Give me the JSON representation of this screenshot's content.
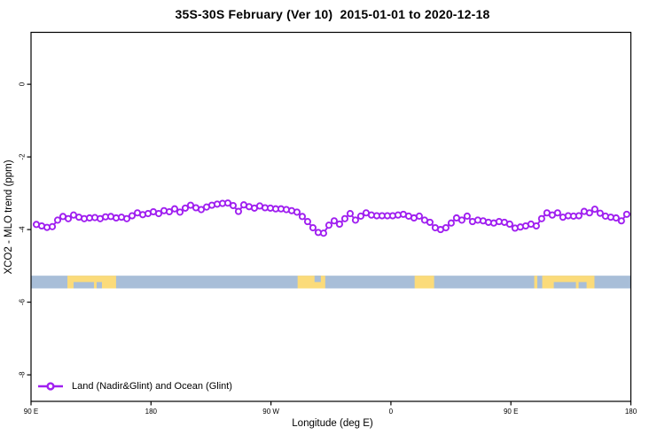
{
  "chart": {
    "title": "35S-30S February (Ver 10)  2015-01-01 to 2020-12-18",
    "xlabel": "Longitude (deg E)",
    "ylabel": "XCO2 - MLO trend (ppm)"
  },
  "legend": {
    "label": "Land (Nadir&Glint) and Ocean (Glint)"
  },
  "colors": {
    "series": "#A020F0",
    "marker_fill": "#FFFFFF",
    "ocean": "#A8BED8",
    "land": "#FBDB7A",
    "axis": "#000000",
    "background": "#FFFFFF"
  },
  "chart_data": {
    "type": "line",
    "title": "35S-30S February (Ver 10)  2015-01-01 to 2020-12-18",
    "xlabel": "Longitude (deg E)",
    "ylabel": "XCO2 - MLO trend (ppm)",
    "xlim": [
      90,
      540
    ],
    "ylim": [
      -8.73,
      1.43
    ],
    "grid": false,
    "legend_position": "bottom-left",
    "x_ticks": [
      {
        "lon": 90,
        "label": "90 E"
      },
      {
        "lon": 180,
        "label": "180"
      },
      {
        "lon": 270,
        "label": "90 W"
      },
      {
        "lon": 360,
        "label": "0"
      },
      {
        "lon": 450,
        "label": "90 E"
      },
      {
        "lon": 540,
        "label": "180"
      }
    ],
    "y_ticks": [
      {
        "v": 0,
        "label": "0"
      },
      {
        "v": -2,
        "label": "-2"
      },
      {
        "v": -4,
        "label": "-4"
      },
      {
        "v": -6,
        "label": "-6"
      },
      {
        "v": -8,
        "label": "-8"
      }
    ],
    "series": [
      {
        "name": "Land (Nadir&Glint) and Ocean (Glint)",
        "color": "#A020F0",
        "marker": "open-circle",
        "lon_start": 94.0,
        "lon_step": 3.99,
        "values": [
          -3.86,
          -3.9,
          -3.94,
          -3.92,
          -3.74,
          -3.64,
          -3.7,
          -3.6,
          -3.66,
          -3.7,
          -3.68,
          -3.67,
          -3.7,
          -3.65,
          -3.64,
          -3.68,
          -3.66,
          -3.7,
          -3.62,
          -3.54,
          -3.59,
          -3.56,
          -3.51,
          -3.56,
          -3.48,
          -3.51,
          -3.43,
          -3.52,
          -3.41,
          -3.33,
          -3.4,
          -3.45,
          -3.38,
          -3.33,
          -3.3,
          -3.28,
          -3.27,
          -3.34,
          -3.5,
          -3.32,
          -3.37,
          -3.41,
          -3.35,
          -3.4,
          -3.41,
          -3.43,
          -3.43,
          -3.45,
          -3.48,
          -3.52,
          -3.64,
          -3.78,
          -3.95,
          -4.08,
          -4.1,
          -3.88,
          -3.76,
          -3.85,
          -3.7,
          -3.56,
          -3.74,
          -3.63,
          -3.54,
          -3.6,
          -3.62,
          -3.62,
          -3.62,
          -3.62,
          -3.6,
          -3.58,
          -3.63,
          -3.68,
          -3.63,
          -3.74,
          -3.8,
          -3.95,
          -4.0,
          -3.95,
          -3.82,
          -3.68,
          -3.74,
          -3.63,
          -3.78,
          -3.74,
          -3.76,
          -3.8,
          -3.82,
          -3.78,
          -3.8,
          -3.85,
          -3.96,
          -3.93,
          -3.9,
          -3.85,
          -3.9,
          -3.7,
          -3.54,
          -3.6,
          -3.54,
          -3.66,
          -3.62,
          -3.63,
          -3.62,
          -3.5,
          -3.54,
          -3.44,
          -3.55,
          -3.63,
          -3.66,
          -3.68,
          -3.76,
          -3.58
        ]
      }
    ],
    "land_ocean_band": {
      "v_top": -5.27,
      "v_bottom": -5.62,
      "ocean_color": "#A8BED8",
      "land_color": "#FBDB7A",
      "land_patches_lon": [
        [
          117.3,
          153.8
        ],
        [
          290.0,
          310.7
        ],
        [
          377.8,
          392.4
        ],
        [
          467.5,
          469.8
        ],
        [
          473.5,
          512.7
        ]
      ],
      "ocean_notches": [
        {
          "lon": [
            121.9,
            137.2
          ],
          "part": "bottom"
        },
        {
          "lon": [
            139.2,
            143.2
          ],
          "part": "bottom"
        },
        {
          "lon": [
            302.7,
            307.4
          ],
          "part": "top"
        },
        {
          "lon": [
            482.2,
            498.8
          ],
          "part": "bottom"
        },
        {
          "lon": [
            500.8,
            506.8
          ],
          "part": "bottom"
        }
      ]
    }
  }
}
